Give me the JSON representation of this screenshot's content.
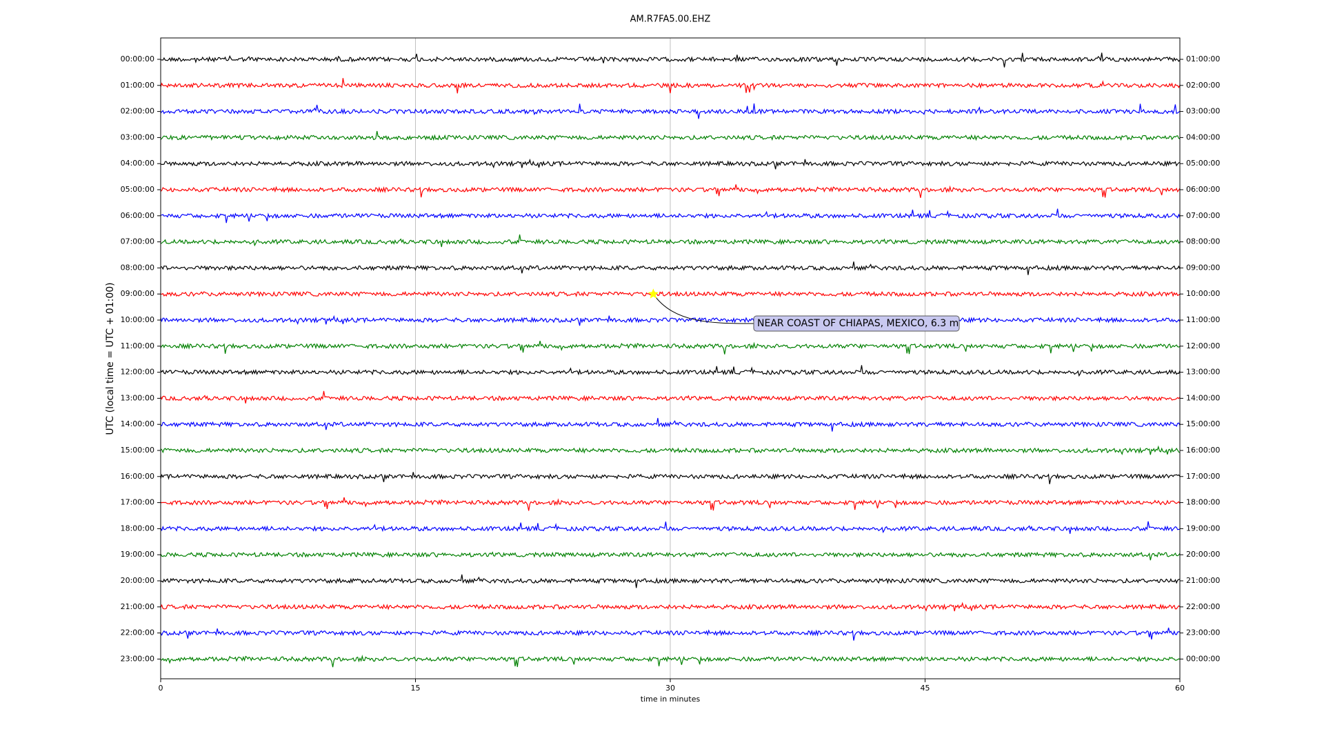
{
  "chart_data": {
    "type": "dayplot",
    "title": "AM.R7FA5.00.EHZ",
    "x_label": "time in minutes",
    "y_label": "UTC (local time = UTC + 01:00)",
    "xlim": [
      0,
      60
    ],
    "xticks": [
      0,
      15,
      30,
      45,
      60
    ],
    "grid": true,
    "colors": [
      "#000000",
      "#ff0000",
      "#0000ff",
      "#008000"
    ],
    "left_labels": [
      "00:00:00",
      "01:00:00",
      "02:00:00",
      "03:00:00",
      "04:00:00",
      "05:00:00",
      "06:00:00",
      "07:00:00",
      "08:00:00",
      "09:00:00",
      "10:00:00",
      "11:00:00",
      "12:00:00",
      "13:00:00",
      "14:00:00",
      "15:00:00",
      "16:00:00",
      "17:00:00",
      "18:00:00",
      "19:00:00",
      "20:00:00",
      "21:00:00",
      "22:00:00",
      "23:00:00"
    ],
    "right_labels": [
      "01:00:00",
      "02:00:00",
      "03:00:00",
      "04:00:00",
      "05:00:00",
      "06:00:00",
      "07:00:00",
      "08:00:00",
      "09:00:00",
      "10:00:00",
      "11:00:00",
      "12:00:00",
      "13:00:00",
      "14:00:00",
      "15:00:00",
      "16:00:00",
      "17:00:00",
      "18:00:00",
      "19:00:00",
      "20:00:00",
      "21:00:00",
      "22:00:00",
      "23:00:00",
      "00:00:00"
    ],
    "event": {
      "label": "NEAR COAST OF CHIAPAS, MEXICO, 6.3 m",
      "minute": 29,
      "row": 9
    }
  }
}
